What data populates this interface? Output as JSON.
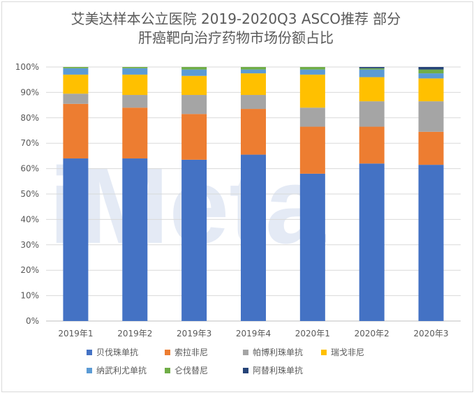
{
  "chart_data": {
    "type": "bar",
    "stacked": true,
    "title_line1": "艾美达样本公立医院 2019-2020Q3  ASCO推荐 部分",
    "title_line2": "肝癌靶向治疗药物市场份额占比",
    "watermark": "iMeta",
    "categories": [
      "2019年1",
      "2019年2",
      "2019年3",
      "2019年4",
      "2020年1",
      "2020年2",
      "2020年3"
    ],
    "ylim": [
      0,
      100
    ],
    "yticks": [
      "0%",
      "10%",
      "20%",
      "30%",
      "40%",
      "50%",
      "60%",
      "70%",
      "80%",
      "90%",
      "100%"
    ],
    "grid": true,
    "legend_position": "bottom",
    "series": [
      {
        "name": "贝伐珠单抗",
        "color": "#4472C4",
        "values": [
          64.0,
          64.0,
          63.5,
          65.5,
          58.0,
          62.0,
          61.5
        ]
      },
      {
        "name": "索拉非尼",
        "color": "#ED7D31",
        "values": [
          21.5,
          20.0,
          18.0,
          18.0,
          18.5,
          14.5,
          13.0
        ]
      },
      {
        "name": "帕博利珠单抗",
        "color": "#A5A5A5",
        "values": [
          4.0,
          5.0,
          7.5,
          5.5,
          7.5,
          10.0,
          12.0
        ]
      },
      {
        "name": "瑞戈非尼",
        "color": "#FFC000",
        "values": [
          7.5,
          8.0,
          7.5,
          8.5,
          13.0,
          9.5,
          9.0
        ]
      },
      {
        "name": "纳武利尤单抗",
        "color": "#5B9BD5",
        "values": [
          2.5,
          2.5,
          2.5,
          1.5,
          2.0,
          3.0,
          2.0
        ]
      },
      {
        "name": "仑伐替尼",
        "color": "#70AD47",
        "values": [
          0.5,
          0.5,
          1.0,
          1.0,
          1.0,
          0.5,
          1.5
        ]
      },
      {
        "name": "阿替利珠单抗",
        "color": "#264478",
        "values": [
          0,
          0,
          0,
          0,
          0,
          0.5,
          1.0
        ]
      }
    ]
  }
}
